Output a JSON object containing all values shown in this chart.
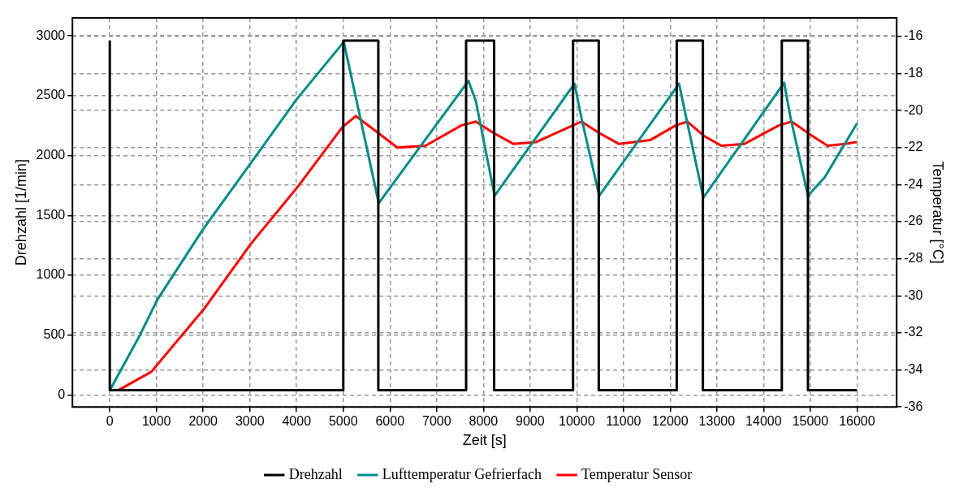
{
  "chart_data": {
    "type": "line",
    "xlabel": "Zeit [s]",
    "ylabel": "Drehzahl [1/min]",
    "y2label": "Temperatur [°C]",
    "xlim": [
      -800,
      16850
    ],
    "xticks": [
      0,
      1000,
      2000,
      3000,
      4000,
      5000,
      6000,
      7000,
      8000,
      9000,
      10000,
      11000,
      12000,
      13000,
      14000,
      15000,
      16000
    ],
    "ylim": [
      -100,
      3150
    ],
    "yticks": [
      0,
      500,
      1000,
      1500,
      2000,
      2500,
      3000
    ],
    "y2lim": [
      -36,
      -15
    ],
    "y2ticks": [
      -36,
      -34,
      -32,
      -30,
      -28,
      -26,
      -24,
      -22,
      -20,
      -18,
      -16
    ],
    "grid": true,
    "legend": "bottom",
    "marker": "none",
    "series": [
      {
        "name": "Drehzahl",
        "type": "step",
        "color": "#000000",
        "x": [
          0,
          0,
          5000,
          5750,
          7630,
          8230,
          9920,
          10470,
          12140,
          12700,
          14390,
          14950,
          16000
        ],
        "values": [
          2960,
          40,
          2960,
          40,
          2960,
          40,
          2960,
          40,
          2960,
          40,
          2960,
          40,
          40
        ]
      },
      {
        "name": "Lufttemperatur Gefrierfach",
        "axis": "y2",
        "color": "#008b8b",
        "x": [
          0,
          650,
          1020,
          2000,
          3000,
          4000,
          5010,
          5760,
          7680,
          7840,
          8240,
          9950,
          10100,
          10480,
          12190,
          12310,
          12710,
          14440,
          14570,
          14950,
          15310,
          16000
        ],
        "values": [
          -35.1,
          -32.1,
          -30.2,
          -26.4,
          -22.9,
          -19.4,
          -16.3,
          -25.0,
          -18.4,
          -19.5,
          -24.6,
          -18.55,
          -20.4,
          -24.6,
          -18.55,
          -20.0,
          -24.7,
          -18.5,
          -20.3,
          -24.6,
          -23.6,
          -20.7
        ]
      },
      {
        "name": "Temperatur Sensor",
        "axis": "y2",
        "color": "#ff0000",
        "x": [
          180,
          890,
          2020,
          3020,
          4030,
          4980,
          5270,
          5690,
          6160,
          6760,
          7530,
          7840,
          8210,
          8640,
          9130,
          9920,
          10100,
          10470,
          10900,
          11570,
          12120,
          12370,
          12740,
          13100,
          13590,
          14330,
          14600,
          15000,
          15370,
          15740,
          16000
        ],
        "values": [
          -35.1,
          -34.1,
          -30.7,
          -27.2,
          -24.1,
          -20.9,
          -20.3,
          -21.1,
          -22.0,
          -21.9,
          -20.8,
          -20.6,
          -21.2,
          -21.8,
          -21.7,
          -20.8,
          -20.6,
          -21.2,
          -21.8,
          -21.6,
          -20.8,
          -20.6,
          -21.4,
          -21.9,
          -21.8,
          -20.8,
          -20.6,
          -21.3,
          -21.9,
          -21.8,
          -21.7
        ]
      }
    ]
  }
}
